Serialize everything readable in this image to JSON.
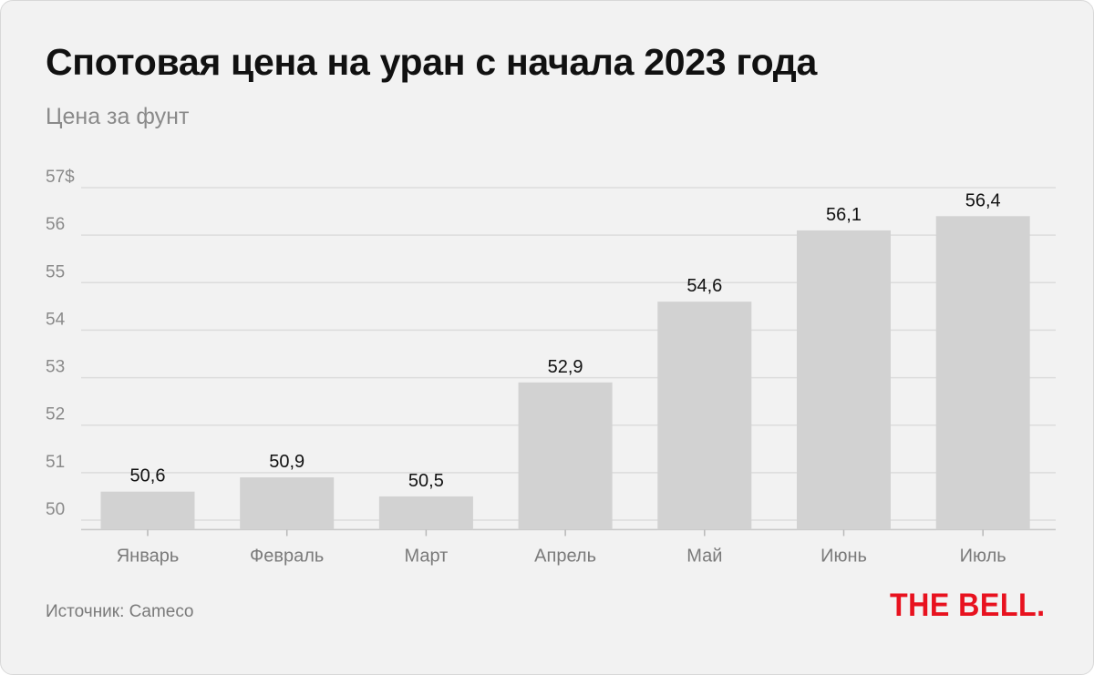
{
  "header": {
    "title": "Спотовая цена на уран с начала 2023 года",
    "subtitle": "Цена за фунт"
  },
  "footer": {
    "source": "Источник: Cameco",
    "logo_text": "THE BELL."
  },
  "colors": {
    "background": "#f2f2f2",
    "bar": "#d2d2d2",
    "grid": "#dcdcdc",
    "logo": "#e8121f"
  },
  "chart_data": {
    "type": "bar",
    "title": "Спотовая цена на уран с начала 2023 года",
    "ylabel": "Цена за фунт",
    "xlabel": "",
    "categories": [
      "Январь",
      "Февраль",
      "Март",
      "Апрель",
      "Май",
      "Июнь",
      "Июль"
    ],
    "values": [
      50.6,
      50.9,
      50.5,
      52.9,
      54.6,
      56.1,
      56.4
    ],
    "value_labels": [
      "50,6",
      "50,9",
      "50,5",
      "52,9",
      "54,6",
      "56,1",
      "56,4"
    ],
    "ylim": [
      49.8,
      57
    ],
    "yticks": [
      50,
      51,
      52,
      53,
      54,
      55,
      56,
      57
    ],
    "ytick_labels": [
      "50",
      "51",
      "52",
      "53",
      "54",
      "55",
      "56",
      "57$"
    ],
    "grid": true,
    "legend": "none"
  }
}
